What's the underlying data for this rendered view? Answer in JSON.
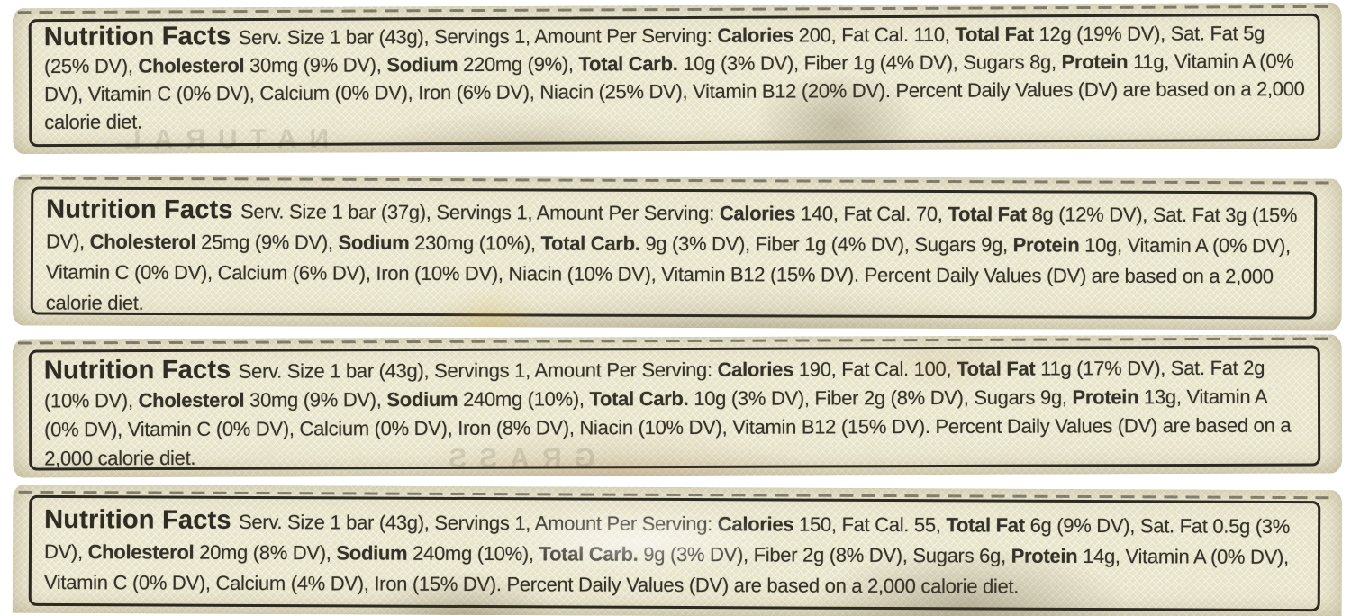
{
  "page": {
    "background_color": "#ffffff",
    "package_color": "#e9e5cb",
    "border_color": "#2b2920",
    "text_color": "#353329",
    "description_labels_count": 4
  },
  "labels": [
    {
      "name": "nutrition-label-1",
      "ghost_text": "NATURAL",
      "segments": [
        {
          "style": "title",
          "text": "Nutrition Facts "
        },
        {
          "style": "normal",
          "text": "Serv. Size 1 bar (43g), Servings 1, Amount Per Serving: "
        },
        {
          "style": "bold",
          "text": "Calories"
        },
        {
          "style": "normal",
          "text": " 200, Fat Cal. 110, "
        },
        {
          "style": "bold",
          "text": "Total Fat"
        },
        {
          "style": "normal",
          "text": " 12g (19% DV), Sat. Fat 5g (25% DV), "
        },
        {
          "style": "bold",
          "text": "Cholesterol"
        },
        {
          "style": "normal",
          "text": " 30mg (9% DV), "
        },
        {
          "style": "bold",
          "text": "Sodium"
        },
        {
          "style": "normal",
          "text": " 220mg (9%), "
        },
        {
          "style": "bold",
          "text": "Total Carb."
        },
        {
          "style": "normal",
          "text": " 10g (3% DV), Fiber 1g (4% DV), Sugars 8g, "
        },
        {
          "style": "bold",
          "text": "Protein"
        },
        {
          "style": "normal",
          "text": " 11g, Vitamin A (0% DV), Vitamin C (0% DV), Calcium (0% DV), Iron (6% DV), Niacin (25% DV), Vitamin B12 (20% DV). Percent Daily Values (DV) are based on a 2,000 calorie diet."
        }
      ]
    },
    {
      "name": "nutrition-label-2",
      "ghost_text": "",
      "segments": [
        {
          "style": "title",
          "text": "Nutrition Facts "
        },
        {
          "style": "normal",
          "text": "Serv. Size 1 bar (37g), Servings 1, Amount Per Serving: "
        },
        {
          "style": "bold",
          "text": "Calories"
        },
        {
          "style": "normal",
          "text": " 140, Fat Cal. 70, "
        },
        {
          "style": "bold",
          "text": "Total Fat"
        },
        {
          "style": "normal",
          "text": " 8g (12% DV), Sat. Fat 3g (15% DV), "
        },
        {
          "style": "bold",
          "text": "Cholesterol"
        },
        {
          "style": "normal",
          "text": " 25mg (9% DV), "
        },
        {
          "style": "bold",
          "text": "Sodium"
        },
        {
          "style": "normal",
          "text": " 230mg (10%), "
        },
        {
          "style": "bold",
          "text": "Total Carb."
        },
        {
          "style": "normal",
          "text": " 9g (3% DV), Fiber 1g (4% DV), Sugars 9g, "
        },
        {
          "style": "bold",
          "text": "Protein"
        },
        {
          "style": "normal",
          "text": " 10g, Vitamin A (0% DV), Vitamin C (0% DV), Calcium (6% DV), Iron (10% DV), Niacin (10% DV), Vitamin B12 (15% DV). Percent Daily Values (DV) are based on a 2,000 calorie diet."
        }
      ]
    },
    {
      "name": "nutrition-label-3",
      "ghost_text": "GRASS",
      "segments": [
        {
          "style": "title",
          "text": "Nutrition Facts "
        },
        {
          "style": "normal",
          "text": "Serv. Size 1 bar (43g), Servings 1, Amount Per Serving: "
        },
        {
          "style": "bold",
          "text": "Calories"
        },
        {
          "style": "normal",
          "text": " 190, Fat Cal. 100, "
        },
        {
          "style": "bold",
          "text": "Total Fat"
        },
        {
          "style": "normal",
          "text": " 11g (17% DV), Sat. Fat 2g (10% DV), "
        },
        {
          "style": "bold",
          "text": "Cholesterol"
        },
        {
          "style": "normal",
          "text": " 30mg (9% DV), "
        },
        {
          "style": "bold",
          "text": "Sodium"
        },
        {
          "style": "normal",
          "text": " 240mg (10%), "
        },
        {
          "style": "bold",
          "text": "Total Carb."
        },
        {
          "style": "normal",
          "text": " 10g (3% DV), Fiber 2g (8% DV), Sugars 9g, "
        },
        {
          "style": "bold",
          "text": "Protein"
        },
        {
          "style": "normal",
          "text": " 13g, Vitamin A (0% DV), Vitamin C (0% DV), Calcium (0% DV), Iron (8% DV), Niacin (10% DV), Vitamin B12 (15% DV). Percent Daily Values (DV) are based on a 2,000 calorie diet."
        }
      ]
    },
    {
      "name": "nutrition-label-4",
      "ghost_text": "",
      "segments": [
        {
          "style": "title",
          "text": "Nutrition Facts "
        },
        {
          "style": "normal",
          "text": "Serv. Size 1 bar (43g), Servings 1, Amount Per Serving: "
        },
        {
          "style": "bold",
          "text": "Calories"
        },
        {
          "style": "normal",
          "text": " 150, Fat Cal. 55, "
        },
        {
          "style": "bold",
          "text": "Total Fat"
        },
        {
          "style": "normal",
          "text": " 6g (9% DV), Sat. Fat 0.5g (3% DV), "
        },
        {
          "style": "bold",
          "text": "Cholesterol"
        },
        {
          "style": "normal",
          "text": " 20mg (8% DV), "
        },
        {
          "style": "bold",
          "text": "Sodium"
        },
        {
          "style": "normal",
          "text": " 240mg (10%), "
        },
        {
          "style": "bold",
          "text": "Total Carb."
        },
        {
          "style": "normal",
          "text": " 9g (3% DV), Fiber 2g (8% DV), Sugars 6g, "
        },
        {
          "style": "bold",
          "text": "Protein"
        },
        {
          "style": "normal",
          "text": " 14g, Vitamin A (0% DV), Vitamin C (0% DV), Calcium (4% DV), Iron (15% DV). Percent Daily Values (DV) are based on a 2,000 calorie diet."
        }
      ]
    }
  ]
}
